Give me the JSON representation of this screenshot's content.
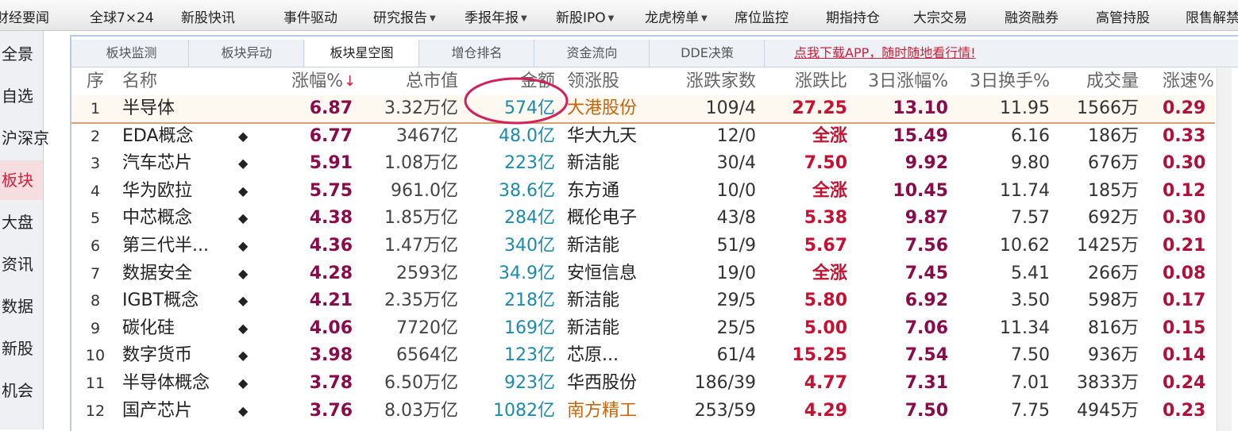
{
  "nav": [
    "财经要闻",
    "全球7×24",
    "新股快讯",
    "事件驱动",
    "研究报告",
    "季报年报",
    "新股IPO",
    "龙虎榜单",
    "席位监控",
    "期指持仓",
    "大宗交易",
    "融资融券",
    "高管持股",
    "限售解禁"
  ],
  "sidebar": [
    "全景",
    "自选",
    "沪深京",
    "板块",
    "大盘",
    "资讯",
    "数据",
    "新股",
    "机会"
  ],
  "tabs": [
    "板块监测",
    "板块异动",
    "板块星空图",
    "增仓排名",
    "资金流向",
    "DDE决策"
  ],
  "promo": "点我下载APP，随时随地看行情!",
  "table": {
    "headers": [
      "序",
      "名称",
      "涨幅%",
      "总市值",
      "金额",
      "领涨股",
      "涨跌家数",
      "涨跌比",
      "3日涨幅%",
      "3日换手%",
      "成交量",
      "涨速%"
    ],
    "rows": [
      {
        "cells": [
          "1",
          "半导体",
          "6.87",
          "3.32万亿",
          "574亿",
          "大港股份",
          "109/4",
          "27.25",
          "13.10",
          "11.95",
          "1566万",
          "0.29"
        ],
        "leader_color": "#c8640a"
      },
      {
        "cells": [
          "2",
          "EDA概念",
          "6.77",
          "3467亿",
          "48.0亿",
          "华大九天",
          "12/0",
          "全涨",
          "15.49",
          "6.16",
          "186万",
          "0.33"
        ],
        "icon": "◆"
      },
      {
        "cells": [
          "3",
          "汽车芯片",
          "5.91",
          "1.08万亿",
          "223亿",
          "新洁能",
          "30/4",
          "7.50",
          "9.92",
          "9.80",
          "676万",
          "0.30"
        ],
        "icon": "◆"
      },
      {
        "cells": [
          "4",
          "华为欧拉",
          "5.75",
          "961.0亿",
          "38.6亿",
          "东方通",
          "10/0",
          "全涨",
          "10.45",
          "11.74",
          "185万",
          "0.12"
        ],
        "icon": "◆"
      },
      {
        "cells": [
          "5",
          "中芯概念",
          "4.38",
          "1.85万亿",
          "284亿",
          "概伦电子",
          "43/8",
          "5.38",
          "9.87",
          "7.57",
          "692万",
          "0.30"
        ],
        "icon": "◆"
      },
      {
        "cells": [
          "6",
          "第三代半...",
          "4.36",
          "1.47万亿",
          "340亿",
          "新洁能",
          "51/9",
          "5.67",
          "7.56",
          "10.62",
          "1425万",
          "0.21"
        ],
        "icon": "◆"
      },
      {
        "cells": [
          "7",
          "数据安全",
          "4.28",
          "2593亿",
          "34.9亿",
          "安恒信息",
          "19/0",
          "全涨",
          "7.45",
          "5.41",
          "266万",
          "0.08"
        ],
        "icon": "◆"
      },
      {
        "cells": [
          "8",
          "IGBT概念",
          "4.21",
          "2.35万亿",
          "218亿",
          "新洁能",
          "29/5",
          "5.80",
          "6.92",
          "3.50",
          "598万",
          "0.17"
        ],
        "icon": "◆"
      },
      {
        "cells": [
          "9",
          "碳化硅",
          "4.06",
          "7720亿",
          "169亿",
          "新洁能",
          "25/5",
          "5.00",
          "7.06",
          "11.34",
          "816万",
          "0.15"
        ],
        "icon": "◆"
      },
      {
        "cells": [
          "10",
          "数字货币",
          "3.98",
          "6564亿",
          "123亿",
          "芯原...",
          "61/4",
          "15.25",
          "7.54",
          "7.50",
          "936万",
          "0.14"
        ],
        "icon": "◆"
      },
      {
        "cells": [
          "11",
          "半导体概念",
          "3.78",
          "6.50万亿",
          "923亿",
          "华西股份",
          "186/39",
          "4.77",
          "7.31",
          "7.01",
          "3833万",
          "0.24"
        ],
        "icon": "◆"
      },
      {
        "cells": [
          "12",
          "国产芯片",
          "3.76",
          "8.03万亿",
          "1082亿",
          "南方精工",
          "253/59",
          "4.29",
          "7.50",
          "7.75",
          "4945万",
          "0.23"
        ],
        "icon": "◆",
        "leader_color": "#c8640a"
      }
    ]
  }
}
